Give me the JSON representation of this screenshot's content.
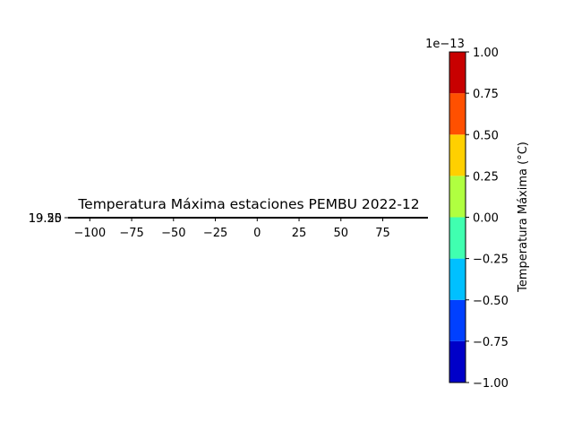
{
  "chart_data": {
    "type": "heatmap",
    "title": "Temperatura Máxima estaciones PEMBU 2022-12",
    "x_ticks": [
      -100,
      -75,
      -50,
      -25,
      0,
      25,
      50,
      75
    ],
    "x_tick_labels": [
      "−100",
      "−75",
      "−50",
      "−25",
      "0",
      "25",
      "50",
      "75"
    ],
    "xlim": [
      -113,
      102
    ],
    "y_tick_labels": [
      "19.50",
      "19.25"
    ],
    "ylim": [
      19.25,
      19.5
    ],
    "colorbar": {
      "label": "Temperatura Máxima (°C)",
      "offset_text": "1e−13",
      "range": [
        -1.0,
        1.0
      ],
      "ticks": [
        -1.0,
        -0.75,
        -0.5,
        -0.25,
        0.0,
        0.25,
        0.5,
        0.75,
        1.0
      ],
      "tick_labels": [
        "−1.00",
        "−0.75",
        "−0.50",
        "−0.25",
        "0.00",
        "0.25",
        "0.50",
        "0.75",
        "1.00"
      ],
      "colors": [
        "#0000c8",
        "#0040ff",
        "#00c0ff",
        "#40ffb0",
        "#b0ff40",
        "#ffd000",
        "#ff5000",
        "#c80000"
      ]
    }
  }
}
